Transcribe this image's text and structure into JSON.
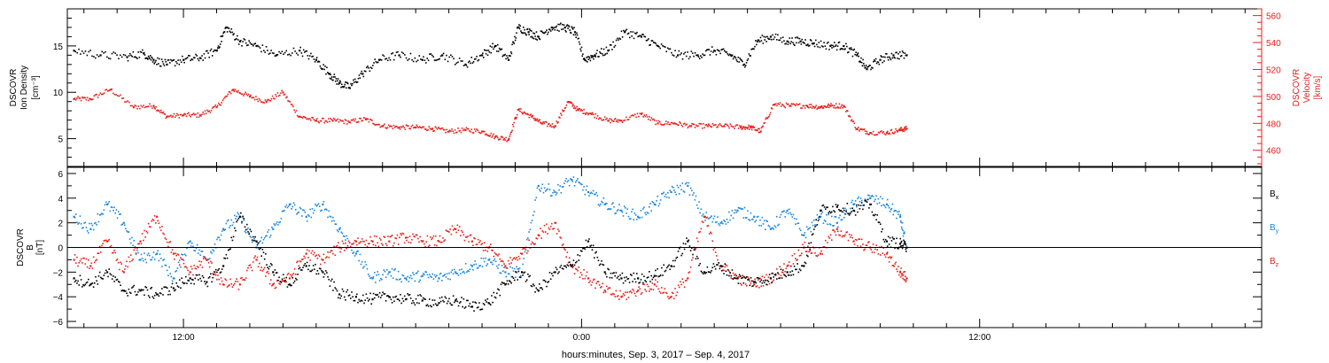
{
  "colors": {
    "black": "#000000",
    "red": "#e8201c",
    "blue": "#1a86e0",
    "axis": "#000000"
  },
  "xaxis": {
    "title": "hours:minutes, Sep.  3, 2017 – Sep.  4, 2017",
    "range_hours": [
      -15.5,
      20.5
    ],
    "major_ticks": [
      {
        "hour": -12,
        "label": "12:00"
      },
      {
        "hour": 0,
        "label": "0:00"
      },
      {
        "hour": 12,
        "label": "12:00"
      }
    ],
    "minor_tick_step_hours": 1
  },
  "chart_data": [
    {
      "type": "scatter",
      "panel": "top",
      "left_axis": {
        "label_lines": [
          "DSCOVR",
          "Ion Density",
          "[cm⁻³]"
        ],
        "range": [
          2,
          19
        ],
        "ticks": [
          "5",
          "10",
          "15"
        ]
      },
      "right_axis": {
        "label_lines": [
          "DSCOVR",
          "Velocity",
          "[km/s]"
        ],
        "range": [
          448,
          565
        ],
        "ticks": [
          "460",
          "480",
          "500",
          "520",
          "540",
          "560"
        ],
        "color": "#e8201c"
      },
      "series": [
        {
          "color": "#000000",
          "axis": "left",
          "x": [
            -15.3,
            -14.5,
            -13.7,
            -13.2,
            -12.9,
            -12.5,
            -12.0,
            -11.5,
            -11.0,
            -10.7,
            -10.3,
            -9.8,
            -9.2,
            -8.5,
            -8.0,
            -7.6,
            -7.3,
            -7.0,
            -6.6,
            -6.1,
            -5.5,
            -4.8,
            -4.2,
            -3.5,
            -3.0,
            -2.6,
            -2.2,
            -1.9,
            -1.6,
            -1.3,
            -0.9,
            -0.5,
            -0.2,
            0.1,
            0.4,
            0.8,
            1.3,
            1.8,
            2.3,
            2.9,
            3.5,
            4.0,
            4.5,
            4.9,
            5.3,
            5.7,
            6.2,
            6.6,
            7.0,
            7.5,
            7.9,
            8.3,
            8.6,
            9.0,
            9.4,
            9.8
          ],
          "y": [
            14.5,
            14.0,
            13.8,
            14.2,
            13.5,
            13.0,
            13.5,
            13.7,
            14.5,
            17.0,
            15.5,
            15.0,
            14.0,
            14.5,
            13.5,
            12.0,
            11.0,
            10.5,
            12.0,
            13.5,
            14.0,
            13.5,
            14.0,
            13.0,
            14.0,
            15.0,
            13.5,
            17.0,
            16.5,
            16.0,
            17.0,
            17.0,
            16.5,
            13.5,
            14.0,
            14.5,
            16.5,
            16.0,
            15.0,
            14.0,
            14.0,
            14.5,
            14.0,
            13.0,
            15.5,
            16.0,
            15.5,
            15.5,
            15.3,
            15.0,
            15.0,
            14.0,
            12.5,
            13.5,
            14.0,
            14.0
          ]
        },
        {
          "color": "#e8201c",
          "axis": "right",
          "x": [
            -15.3,
            -14.8,
            -14.2,
            -13.5,
            -12.9,
            -12.5,
            -12.0,
            -11.5,
            -11.0,
            -10.5,
            -10.0,
            -9.5,
            -9.0,
            -8.5,
            -8.0,
            -7.5,
            -7.0,
            -6.5,
            -6.0,
            -5.5,
            -5.0,
            -4.5,
            -4.0,
            -3.5,
            -3.0,
            -2.6,
            -2.2,
            -1.9,
            -1.5,
            -1.2,
            -0.8,
            -0.4,
            -0.1,
            0.3,
            0.8,
            1.2,
            1.8,
            2.3,
            2.8,
            3.3,
            3.8,
            4.3,
            4.8,
            5.1,
            5.4,
            5.8,
            6.3,
            6.8,
            7.2,
            7.5,
            7.9,
            8.3,
            8.7,
            9.2,
            9.6,
            9.8
          ],
          "y": [
            498,
            498,
            505,
            492,
            493,
            485,
            486,
            486,
            492,
            505,
            500,
            496,
            503,
            485,
            482,
            482,
            481,
            483,
            478,
            477,
            477,
            476,
            474,
            475,
            474,
            470,
            468,
            490,
            485,
            480,
            478,
            496,
            490,
            487,
            482,
            482,
            487,
            480,
            480,
            478,
            478,
            478,
            477,
            477,
            474,
            494,
            493,
            493,
            492,
            493,
            493,
            476,
            473,
            473,
            475,
            476
          ]
        }
      ]
    },
    {
      "type": "scatter",
      "panel": "bottom",
      "left_axis": {
        "label_lines": [
          "DSCOVR",
          "B",
          "[nT]"
        ],
        "range": [
          -6.5,
          6.5
        ],
        "ticks": [
          "−6",
          "−4",
          "−2",
          "0",
          "2",
          "4",
          "6"
        ]
      },
      "legend": [
        {
          "label": "B",
          "sub": "x",
          "color": "#000000"
        },
        {
          "label": "B",
          "sub": "y",
          "color": "#1a86e0"
        },
        {
          "label": "B",
          "sub": "z",
          "color": "#e8201c"
        }
      ],
      "zero_line": true,
      "series": [
        {
          "name": "Bx",
          "color": "#000000",
          "x": [
            -15.3,
            -14.8,
            -14.3,
            -13.8,
            -13.3,
            -12.8,
            -12.3,
            -11.8,
            -11.3,
            -10.8,
            -10.3,
            -9.8,
            -9.3,
            -8.8,
            -8.3,
            -7.8,
            -7.3,
            -6.8,
            -6.3,
            -5.8,
            -5.3,
            -4.8,
            -4.3,
            -3.8,
            -3.3,
            -2.8,
            -2.3,
            -1.8,
            -1.3,
            -0.8,
            -0.3,
            0.2,
            0.7,
            1.2,
            1.7,
            2.2,
            2.7,
            3.2,
            3.7,
            4.2,
            4.7,
            5.2,
            5.7,
            6.2,
            6.7,
            7.2,
            7.7,
            8.2,
            8.7,
            9.2,
            9.6,
            9.8
          ],
          "y": [
            -2.5,
            -3.0,
            -2.0,
            -3.5,
            -3.5,
            -3.8,
            -3.3,
            -2.5,
            -2.8,
            -1.5,
            2.5,
            0.5,
            -2.0,
            -3.0,
            -1.5,
            -2.0,
            -3.8,
            -4.0,
            -4.2,
            -4.0,
            -4.2,
            -4.3,
            -4.5,
            -4.3,
            -4.8,
            -4.5,
            -3.0,
            -2.0,
            -3.5,
            -2.0,
            -1.5,
            0.5,
            -2.0,
            -2.5,
            -2.5,
            -2.3,
            -1.5,
            0.5,
            -2.0,
            -1.5,
            -2.5,
            -2.8,
            -2.5,
            -2.0,
            -1.5,
            3.0,
            3.3,
            3.0,
            3.5,
            0.5,
            0.3,
            0.0
          ]
        },
        {
          "name": "By",
          "color": "#1a86e0",
          "x": [
            -15.3,
            -14.8,
            -14.3,
            -13.8,
            -13.3,
            -12.8,
            -12.3,
            -11.8,
            -11.3,
            -10.8,
            -10.3,
            -9.8,
            -9.3,
            -8.8,
            -8.3,
            -7.8,
            -7.3,
            -6.8,
            -6.3,
            -5.8,
            -5.3,
            -4.8,
            -4.3,
            -3.8,
            -3.3,
            -2.8,
            -2.3,
            -1.8,
            -1.3,
            -0.8,
            -0.3,
            0.2,
            0.7,
            1.2,
            1.7,
            2.2,
            2.7,
            3.2,
            3.7,
            4.2,
            4.7,
            5.2,
            5.7,
            6.2,
            6.7,
            7.2,
            7.7,
            8.2,
            8.7,
            9.2,
            9.6,
            9.8
          ],
          "y": [
            2.5,
            1.5,
            3.5,
            2.0,
            -1.0,
            -0.5,
            -2.5,
            0.5,
            -1.0,
            1.5,
            2.5,
            0.0,
            1.5,
            3.5,
            2.5,
            3.5,
            1.5,
            -0.5,
            -2.5,
            -2.0,
            -2.5,
            -2.3,
            -2.5,
            -2.0,
            -1.5,
            -1.0,
            -2.0,
            -2.0,
            5.0,
            4.5,
            5.5,
            4.5,
            3.5,
            3.0,
            2.5,
            3.5,
            4.5,
            5.0,
            2.5,
            2.0,
            3.0,
            2.5,
            1.5,
            3.0,
            1.0,
            2.5,
            2.0,
            3.5,
            4.0,
            3.5,
            2.5,
            0.0
          ]
        },
        {
          "name": "Bz",
          "color": "#e8201c",
          "x": [
            -15.3,
            -14.8,
            -14.3,
            -13.8,
            -13.3,
            -12.8,
            -12.3,
            -11.8,
            -11.3,
            -10.8,
            -10.3,
            -9.8,
            -9.3,
            -8.8,
            -8.3,
            -7.8,
            -7.3,
            -6.8,
            -6.3,
            -5.8,
            -5.3,
            -4.8,
            -4.3,
            -3.8,
            -3.3,
            -2.8,
            -2.3,
            -1.8,
            -1.3,
            -0.8,
            -0.3,
            0.2,
            0.7,
            1.2,
            1.7,
            2.2,
            2.7,
            3.2,
            3.7,
            4.2,
            4.7,
            5.2,
            5.7,
            6.2,
            6.7,
            7.2,
            7.7,
            8.2,
            8.7,
            9.2,
            9.6,
            9.8
          ],
          "y": [
            -1.0,
            -1.5,
            0.5,
            -2.0,
            0.5,
            2.5,
            -0.5,
            -2.0,
            -1.0,
            -3.0,
            -3.0,
            -1.0,
            -3.0,
            -2.5,
            -0.5,
            -1.0,
            0.0,
            0.5,
            0.5,
            0.5,
            0.8,
            0.5,
            0.5,
            1.5,
            0.5,
            0.0,
            -1.5,
            -0.5,
            1.0,
            2.0,
            -1.5,
            -2.5,
            -3.5,
            -4.0,
            -3.5,
            -3.0,
            -4.0,
            -2.5,
            2.5,
            -1.5,
            -2.5,
            -3.0,
            -2.5,
            -1.5,
            0.0,
            -0.5,
            1.5,
            0.5,
            0.0,
            -0.5,
            -2.0,
            -2.5
          ]
        }
      ]
    }
  ]
}
